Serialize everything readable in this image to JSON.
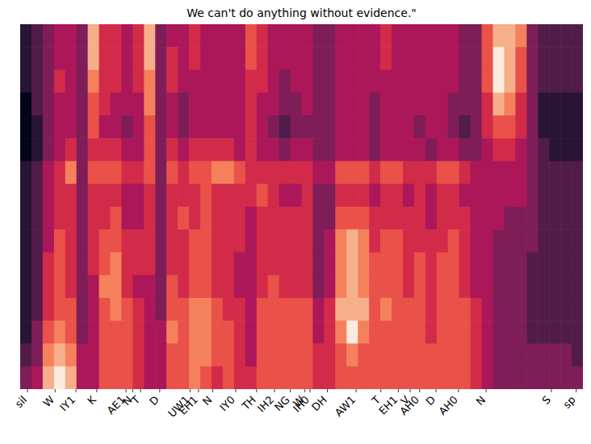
{
  "chart_data": {
    "type": "heatmap",
    "title": "We can't do anything without evidence.\"",
    "tick_labels": "x",
    "xlim": [
      0,
      50
    ],
    "xticks": [
      {
        "value": 0.65,
        "label": "sil"
      },
      {
        "value": 3.1,
        "label": "W"
      },
      {
        "value": 4.95,
        "label": "IY1"
      },
      {
        "value": 6.8,
        "label": "K"
      },
      {
        "value": 9.4,
        "label": "AE1"
      },
      {
        "value": 10.0,
        "label": "N"
      },
      {
        "value": 10.7,
        "label": "T"
      },
      {
        "value": 12.4,
        "label": "D"
      },
      {
        "value": 15.1,
        "label": "UW1"
      },
      {
        "value": 15.85,
        "label": "EH1"
      },
      {
        "value": 17.1,
        "label": "N"
      },
      {
        "value": 19.15,
        "label": "IY0"
      },
      {
        "value": 21.0,
        "label": "TH"
      },
      {
        "value": 22.6,
        "label": "IH2"
      },
      {
        "value": 24.0,
        "label": "NG"
      },
      {
        "value": 25.3,
        "label": "W"
      },
      {
        "value": 25.75,
        "label": "IH0"
      },
      {
        "value": 27.3,
        "label": "DH"
      },
      {
        "value": 29.85,
        "label": "AW1"
      },
      {
        "value": 32.05,
        "label": "T"
      },
      {
        "value": 33.6,
        "label": "EH1"
      },
      {
        "value": 34.65,
        "label": "V"
      },
      {
        "value": 35.5,
        "label": "AH0"
      },
      {
        "value": 36.95,
        "label": "D"
      },
      {
        "value": 38.95,
        "label": "AH0"
      },
      {
        "value": 41.4,
        "label": "N"
      },
      {
        "value": 47.2,
        "label": "S"
      },
      {
        "value": 49.4,
        "label": "sp"
      }
    ],
    "clim": [
      0,
      9
    ],
    "cells": [
      [
        1,
        2,
        3,
        4,
        4,
        3,
        8,
        5,
        5,
        4,
        5,
        8,
        3,
        4,
        4,
        5,
        4,
        4,
        4,
        4,
        6,
        5,
        4,
        4,
        4,
        4,
        3,
        3,
        4,
        4,
        4,
        4,
        5,
        4,
        4,
        4,
        4,
        4,
        4,
        3,
        3,
        6,
        8,
        8,
        7,
        3,
        2,
        2,
        2,
        2
      ],
      [
        1,
        2,
        3,
        4,
        4,
        3,
        8,
        5,
        5,
        4,
        5,
        8,
        3,
        5,
        4,
        5,
        4,
        4,
        4,
        4,
        6,
        5,
        4,
        4,
        4,
        4,
        3,
        3,
        4,
        4,
        4,
        4,
        5,
        4,
        4,
        4,
        4,
        4,
        4,
        3,
        3,
        6,
        9,
        8,
        6,
        3,
        2,
        2,
        2,
        2
      ],
      [
        1,
        2,
        3,
        5,
        4,
        3,
        7,
        5,
        5,
        4,
        5,
        7,
        3,
        5,
        4,
        4,
        4,
        4,
        4,
        4,
        5,
        5,
        4,
        3,
        4,
        4,
        3,
        3,
        4,
        4,
        4,
        4,
        4,
        4,
        4,
        4,
        4,
        4,
        4,
        3,
        3,
        6,
        9,
        8,
        6,
        3,
        2,
        2,
        2,
        2
      ],
      [
        0,
        2,
        3,
        4,
        4,
        3,
        6,
        5,
        4,
        4,
        4,
        7,
        3,
        4,
        3,
        4,
        4,
        4,
        4,
        4,
        5,
        4,
        4,
        3,
        3,
        4,
        3,
        3,
        4,
        4,
        4,
        3,
        4,
        4,
        4,
        4,
        4,
        4,
        3,
        3,
        3,
        5,
        8,
        7,
        5,
        3,
        1,
        1,
        1,
        1
      ],
      [
        0,
        1,
        3,
        4,
        4,
        3,
        6,
        4,
        4,
        3,
        4,
        6,
        3,
        4,
        3,
        4,
        4,
        4,
        4,
        4,
        5,
        4,
        3,
        2,
        3,
        3,
        3,
        3,
        4,
        4,
        4,
        3,
        4,
        4,
        4,
        3,
        4,
        4,
        3,
        2,
        3,
        5,
        6,
        6,
        5,
        3,
        1,
        1,
        1,
        1
      ],
      [
        0,
        1,
        3,
        4,
        5,
        3,
        5,
        5,
        5,
        4,
        4,
        6,
        3,
        5,
        4,
        5,
        5,
        5,
        5,
        4,
        5,
        4,
        4,
        3,
        4,
        4,
        3,
        3,
        4,
        4,
        4,
        3,
        4,
        4,
        4,
        4,
        3,
        4,
        4,
        3,
        3,
        4,
        5,
        5,
        4,
        3,
        2,
        1,
        1,
        1
      ],
      [
        1,
        2,
        4,
        5,
        7,
        3,
        6,
        6,
        6,
        5,
        5,
        6,
        3,
        6,
        5,
        6,
        6,
        7,
        7,
        6,
        5,
        5,
        5,
        5,
        5,
        5,
        4,
        4,
        6,
        6,
        6,
        5,
        6,
        6,
        5,
        5,
        5,
        6,
        6,
        5,
        4,
        4,
        4,
        4,
        4,
        3,
        2,
        2,
        2,
        2
      ],
      [
        1,
        2,
        4,
        5,
        5,
        3,
        5,
        5,
        5,
        4,
        4,
        5,
        3,
        5,
        5,
        5,
        6,
        5,
        5,
        5,
        5,
        6,
        5,
        4,
        4,
        5,
        3,
        3,
        5,
        5,
        5,
        4,
        5,
        5,
        4,
        5,
        4,
        5,
        5,
        4,
        4,
        4,
        4,
        4,
        4,
        3,
        2,
        2,
        2,
        2
      ],
      [
        1,
        2,
        4,
        5,
        5,
        3,
        5,
        5,
        6,
        4,
        4,
        5,
        3,
        5,
        6,
        5,
        6,
        5,
        5,
        5,
        4,
        5,
        5,
        5,
        5,
        5,
        3,
        3,
        6,
        6,
        6,
        5,
        5,
        5,
        5,
        5,
        4,
        5,
        5,
        5,
        4,
        4,
        4,
        3,
        3,
        3,
        2,
        2,
        2,
        2
      ],
      [
        1,
        2,
        4,
        6,
        5,
        3,
        5,
        6,
        6,
        5,
        5,
        5,
        3,
        5,
        5,
        6,
        6,
        5,
        5,
        5,
        4,
        5,
        5,
        5,
        5,
        5,
        3,
        4,
        7,
        8,
        7,
        5,
        6,
        6,
        5,
        5,
        5,
        5,
        6,
        5,
        4,
        4,
        3,
        3,
        3,
        3,
        2,
        2,
        2,
        2
      ],
      [
        1,
        2,
        5,
        6,
        5,
        3,
        5,
        6,
        7,
        5,
        5,
        5,
        3,
        5,
        5,
        6,
        6,
        5,
        5,
        4,
        4,
        5,
        5,
        5,
        5,
        5,
        3,
        4,
        7,
        8,
        7,
        6,
        6,
        6,
        5,
        6,
        5,
        6,
        6,
        5,
        4,
        4,
        3,
        3,
        3,
        2,
        2,
        2,
        2,
        2
      ],
      [
        1,
        2,
        5,
        6,
        5,
        3,
        4,
        7,
        7,
        5,
        4,
        4,
        3,
        6,
        5,
        6,
        6,
        5,
        5,
        4,
        4,
        5,
        6,
        5,
        5,
        5,
        3,
        4,
        7,
        8,
        7,
        6,
        6,
        6,
        5,
        6,
        5,
        6,
        6,
        5,
        4,
        4,
        3,
        3,
        3,
        2,
        2,
        2,
        2,
        2
      ],
      [
        1,
        2,
        5,
        6,
        6,
        3,
        4,
        6,
        7,
        6,
        5,
        4,
        3,
        6,
        6,
        7,
        7,
        6,
        5,
        5,
        4,
        6,
        6,
        6,
        6,
        6,
        4,
        5,
        8,
        8,
        8,
        6,
        7,
        6,
        6,
        6,
        5,
        6,
        6,
        6,
        5,
        4,
        3,
        3,
        3,
        2,
        2,
        2,
        2,
        2
      ],
      [
        1,
        3,
        6,
        7,
        6,
        3,
        4,
        6,
        6,
        6,
        5,
        4,
        4,
        7,
        6,
        7,
        7,
        6,
        6,
        5,
        4,
        6,
        6,
        6,
        6,
        6,
        4,
        5,
        7,
        9,
        7,
        6,
        6,
        6,
        6,
        6,
        5,
        6,
        6,
        6,
        5,
        4,
        3,
        3,
        3,
        2,
        2,
        2,
        2,
        2
      ],
      [
        2,
        3,
        7,
        8,
        7,
        4,
        4,
        6,
        6,
        6,
        5,
        4,
        4,
        6,
        6,
        7,
        7,
        6,
        6,
        5,
        4,
        6,
        6,
        6,
        6,
        6,
        5,
        5,
        6,
        7,
        6,
        6,
        6,
        6,
        6,
        6,
        6,
        6,
        6,
        6,
        5,
        4,
        3,
        3,
        3,
        3,
        3,
        3,
        3,
        2
      ],
      [
        3,
        4,
        8,
        9,
        8,
        4,
        4,
        6,
        6,
        6,
        5,
        4,
        4,
        6,
        6,
        7,
        6,
        5,
        6,
        5,
        5,
        6,
        6,
        6,
        6,
        6,
        5,
        5,
        6,
        6,
        6,
        6,
        6,
        6,
        6,
        6,
        6,
        6,
        6,
        6,
        5,
        4,
        3,
        3,
        3,
        3,
        3,
        3,
        3,
        3
      ]
    ]
  }
}
